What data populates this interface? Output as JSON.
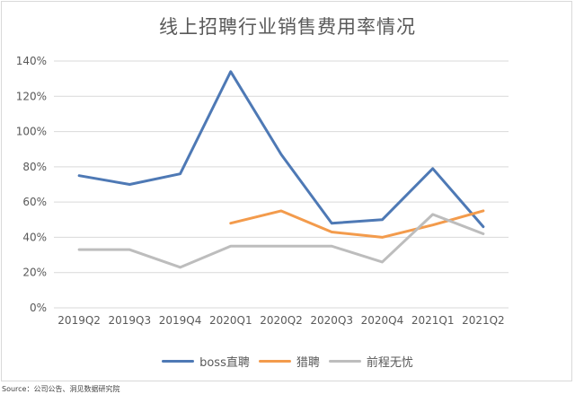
{
  "chart_data": {
    "type": "line",
    "title": "线上招聘行业销售费用率情况",
    "categories": [
      "2019Q2",
      "2019Q3",
      "2019Q4",
      "2020Q1",
      "2020Q2",
      "2020Q3",
      "2020Q4",
      "2021Q1",
      "2021Q2"
    ],
    "y_ticks": [
      "0%",
      "20%",
      "40%",
      "60%",
      "80%",
      "100%",
      "120%",
      "140%"
    ],
    "ylim": [
      0,
      140
    ],
    "grid": true,
    "legend_position": "bottom",
    "series": [
      {
        "name": "boss直聘",
        "color": "#4e79b5",
        "values": [
          75,
          70,
          76,
          134,
          87,
          48,
          50,
          79,
          46
        ]
      },
      {
        "name": "猎聘",
        "color": "#f39b4c",
        "values": [
          null,
          null,
          null,
          48,
          55,
          43,
          40,
          47,
          55
        ]
      },
      {
        "name": "前程无忧",
        "color": "#bdbdbd",
        "values": [
          33,
          33,
          23,
          35,
          35,
          35,
          26,
          53,
          42
        ]
      }
    ]
  },
  "source": "Source：公司公告、洞见数据研究院"
}
